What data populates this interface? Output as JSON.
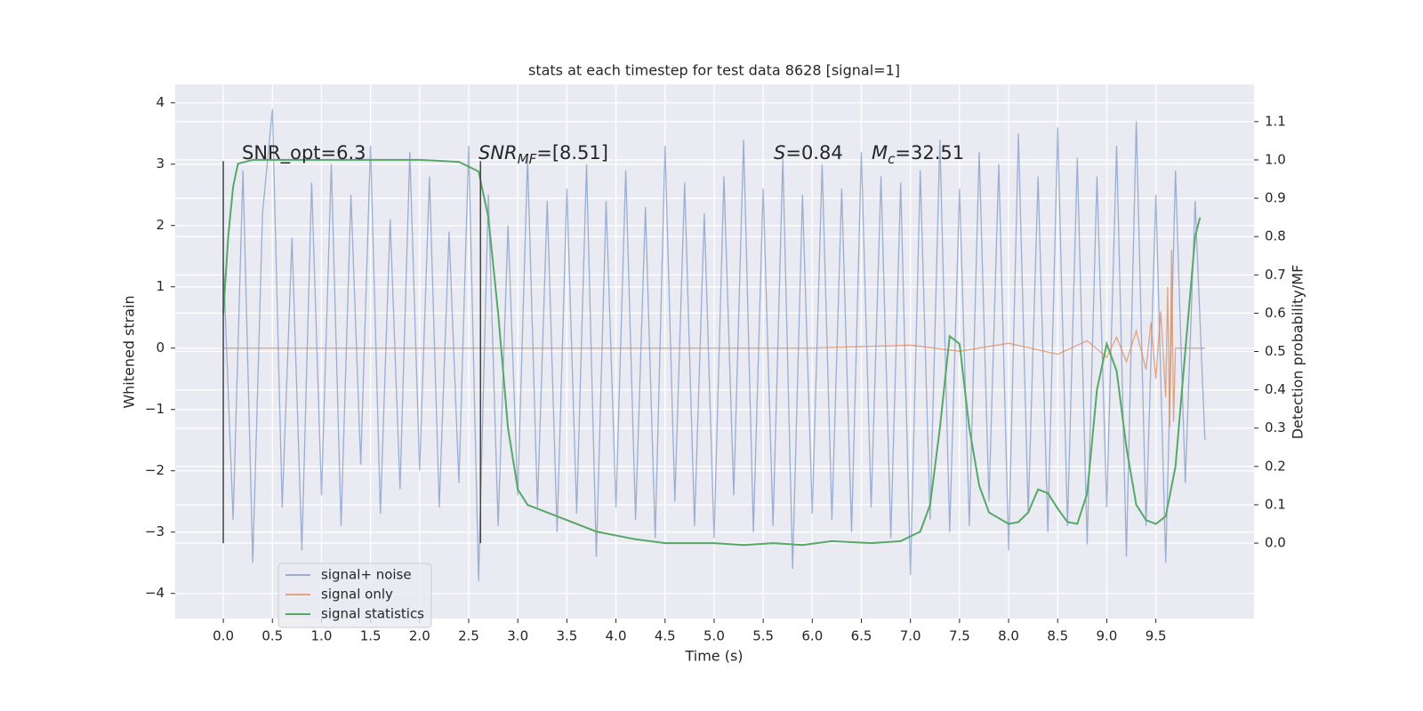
{
  "chart_data": {
    "type": "line",
    "title": "stats at each timestep for test data 8628 [signal=1]",
    "xlabel": "Time (s)",
    "ylabel": "Whitened strain",
    "y2label": "Detection probability/MF",
    "xlim": [
      -0.49,
      10.5
    ],
    "ylim": [
      -4.41,
      4.3
    ],
    "y2lim": [
      -0.197,
      1.197
    ],
    "xticks": [
      {
        "value": 0,
        "label": "0.0"
      },
      0.5,
      {
        "value": 1,
        "label": "1.0"
      },
      1.5,
      {
        "value": 2,
        "label": "2.0"
      },
      2.5,
      {
        "value": 3,
        "label": "3.0"
      },
      3.5,
      {
        "value": 4,
        "label": "4.0"
      },
      4.5,
      {
        "value": 5,
        "label": "5.0"
      },
      5.5,
      {
        "value": 6,
        "label": "6.0"
      },
      6.5,
      {
        "value": 7,
        "label": "7.0"
      },
      7.5,
      {
        "value": 8,
        "label": "8.0"
      },
      8.5,
      {
        "value": 9,
        "label": "9.0"
      },
      9.5
    ],
    "yticks": [
      {
        "value": -4,
        "label": "−4"
      },
      {
        "value": -3,
        "label": "−3"
      },
      {
        "value": -2,
        "label": "−2"
      },
      {
        "value": -1,
        "label": "−1"
      },
      0,
      1,
      2,
      3,
      4
    ],
    "y2ticks": [
      {
        "value": 0,
        "label": "0.0"
      },
      0.1,
      0.2,
      0.3,
      0.4,
      0.5,
      0.6,
      0.7,
      0.8,
      0.9,
      {
        "value": 1,
        "label": "1.0"
      },
      1.1
    ],
    "grid": true,
    "legend": "lower left",
    "series": [
      {
        "name": "signal+ noise",
        "color": "#4c72b0",
        "opacity": 0.5,
        "x": [
          0,
          0.1,
          0.2,
          0.3,
          0.4,
          0.5,
          0.6,
          0.7,
          0.8,
          0.9,
          1,
          1.1,
          1.2,
          1.3,
          1.4,
          1.5,
          1.6,
          1.7,
          1.8,
          1.9,
          2,
          2.1,
          2.2,
          2.3,
          2.4,
          2.5,
          2.6,
          2.7,
          2.8,
          2.9,
          3,
          3.1,
          3.2,
          3.3,
          3.4,
          3.5,
          3.6,
          3.7,
          3.8,
          3.9,
          4,
          4.1,
          4.2,
          4.3,
          4.4,
          4.5,
          4.6,
          4.7,
          4.8,
          4.9,
          5,
          5.1,
          5.2,
          5.3,
          5.4,
          5.5,
          5.6,
          5.7,
          5.8,
          5.9,
          6,
          6.1,
          6.2,
          6.3,
          6.4,
          6.5,
          6.6,
          6.7,
          6.8,
          6.9,
          7,
          7.1,
          7.2,
          7.3,
          7.4,
          7.5,
          7.6,
          7.7,
          7.8,
          7.9,
          8,
          8.1,
          8.2,
          8.3,
          8.4,
          8.5,
          8.6,
          8.7,
          8.8,
          8.9,
          9,
          9.1,
          9.2,
          9.3,
          9.4,
          9.5,
          9.6,
          9.7,
          9.8,
          9.9,
          10
        ],
        "values": [
          1.4,
          -2.8,
          2.9,
          -3.5,
          2.2,
          3.9,
          -2.6,
          1.8,
          -3.3,
          2.7,
          -2.4,
          3.0,
          -2.9,
          2.5,
          -1.9,
          3.3,
          -2.7,
          2.1,
          -2.3,
          3.2,
          -2.0,
          2.8,
          -2.6,
          1.9,
          -2.2,
          3.3,
          -3.8,
          2.5,
          -2.9,
          2.0,
          -2.4,
          3.1,
          -2.6,
          2.4,
          -3.0,
          2.6,
          -2.7,
          3.0,
          -3.4,
          2.4,
          -2.6,
          2.9,
          -2.8,
          2.3,
          -3.1,
          3.3,
          -2.5,
          2.7,
          -2.9,
          2.2,
          -3.1,
          2.8,
          -2.4,
          3.4,
          -3.0,
          2.6,
          -2.9,
          3.1,
          -3.6,
          2.5,
          -2.7,
          3.0,
          -2.8,
          2.6,
          -3.0,
          3.2,
          -2.6,
          2.8,
          -3.1,
          2.7,
          -3.7,
          2.9,
          -2.8,
          3.4,
          -3.0,
          2.6,
          -2.9,
          3.2,
          -2.5,
          3.0,
          -3.3,
          3.5,
          -2.7,
          2.8,
          -3.0,
          3.6,
          -2.9,
          3.1,
          -3.2,
          2.8,
          -2.6,
          3.3,
          -3.4,
          3.7,
          -2.9,
          2.5,
          -3.5,
          2.9,
          -2.2,
          2.4,
          -1.5
        ]
      },
      {
        "name": "signal only",
        "color": "#dd8452",
        "opacity": 0.7,
        "x": [
          0,
          6.0,
          7.0,
          7.5,
          8.0,
          8.5,
          8.8,
          9.0,
          9.1,
          9.2,
          9.3,
          9.4,
          9.45,
          9.5,
          9.55,
          9.6,
          9.62,
          9.64,
          9.66,
          9.68,
          9.7,
          10.0
        ],
        "values": [
          0,
          0,
          0.05,
          -0.05,
          0.08,
          -0.1,
          0.12,
          -0.15,
          0.18,
          -0.22,
          0.28,
          -0.35,
          0.42,
          -0.5,
          0.6,
          -0.8,
          1.0,
          -1.3,
          1.6,
          -1.2,
          0,
          0
        ]
      },
      {
        "name": "signal statistics",
        "color": "#55a868",
        "opacity": 1,
        "axis": "y2",
        "x": [
          0,
          0.05,
          0.1,
          0.15,
          0.3,
          1.0,
          2.0,
          2.4,
          2.6,
          2.7,
          2.8,
          2.9,
          3.0,
          3.1,
          3.4,
          3.8,
          4.2,
          4.5,
          5.0,
          5.3,
          5.6,
          5.9,
          6.2,
          6.6,
          6.9,
          7.1,
          7.2,
          7.3,
          7.4,
          7.5,
          7.6,
          7.7,
          7.8,
          8.0,
          8.1,
          8.2,
          8.3,
          8.4,
          8.5,
          8.6,
          8.7,
          8.8,
          8.9,
          9.0,
          9.1,
          9.2,
          9.3,
          9.4,
          9.5,
          9.6,
          9.7,
          9.8,
          9.9,
          9.95
        ],
        "values": [
          0.6,
          0.8,
          0.93,
          0.99,
          1.0,
          1.0,
          1.0,
          0.995,
          0.97,
          0.85,
          0.6,
          0.3,
          0.14,
          0.1,
          0.07,
          0.03,
          0.01,
          0.0,
          0.0,
          -0.005,
          0.0,
          -0.005,
          0.005,
          0.0,
          0.005,
          0.03,
          0.1,
          0.3,
          0.54,
          0.52,
          0.3,
          0.15,
          0.08,
          0.05,
          0.055,
          0.08,
          0.14,
          0.13,
          0.09,
          0.055,
          0.05,
          0.13,
          0.4,
          0.52,
          0.45,
          0.25,
          0.1,
          0.06,
          0.05,
          0.07,
          0.2,
          0.5,
          0.8,
          0.85
        ]
      }
    ],
    "vlines": {
      "x": [
        0,
        2.62
      ],
      "ymin": -3.18,
      "ymax": 3.05,
      "color": "#444444"
    },
    "annotations": [
      {
        "base": "SNR_opt=6.3"
      },
      {
        "base": "SNR",
        "sub": "MF",
        "rest": "=[8.51]"
      },
      {
        "base": "S",
        "rest": "=0.84"
      },
      {
        "base": "M",
        "sub": "c",
        "rest": "=32.51"
      }
    ]
  }
}
